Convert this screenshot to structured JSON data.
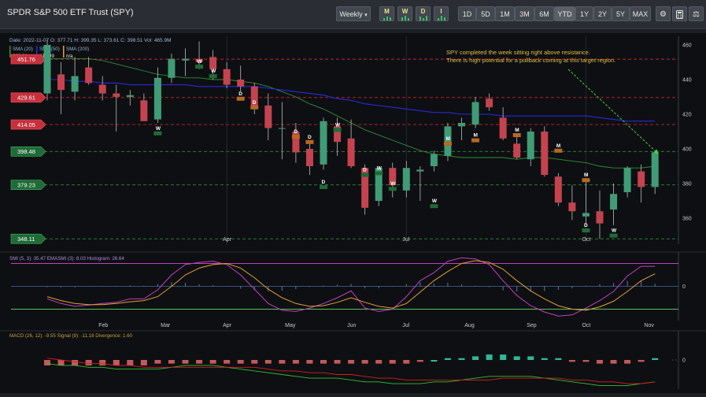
{
  "app": {
    "title": "SPDR S&P 500 ETF Trust (SPY)"
  },
  "toolbar": {
    "interval": "Weekly",
    "indicator_buttons": [
      "M",
      "W",
      "D",
      "I"
    ],
    "ranges": [
      "1D",
      "5D",
      "1M",
      "3M",
      "6M",
      "YTD",
      "1Y",
      "2Y",
      "5Y",
      "MAX"
    ],
    "active_range": "YTD",
    "tool_icons": [
      "settings-gears-icon",
      "calculator-icon",
      "scale-icon"
    ]
  },
  "colors": {
    "background": "#0e0f12",
    "up": "#3f9c76",
    "down": "#c4434f",
    "sma20": "#2f8f3c",
    "sma50": "#2a2ad8",
    "sma200": "#e0a030",
    "smi": "#c040c0",
    "emasmi": "#e0a030",
    "macd": "#30c030",
    "signal": "#d02020",
    "resistance": "#c02a2a",
    "support": "#2f8a3c",
    "annotation": "#e0c040",
    "arrow": "#44d444"
  },
  "chart_data": [
    {
      "type": "candlestick",
      "title": "",
      "ylim": [
        345,
        465
      ],
      "yticks": [
        360,
        380,
        400,
        420,
        440,
        460
      ],
      "month_labels": [
        {
          "label": "Apr",
          "index": 13
        },
        {
          "label": "Jul",
          "index": 26
        },
        {
          "label": "Oct",
          "index": 39
        }
      ],
      "ohlc_legend": {
        "date": "2022-11-07",
        "open": "377.71",
        "high": "399.35",
        "low": "373.61",
        "close": "398.51",
        "vol": "465.9M"
      },
      "ohlc_legend_text": "Date: 2022-11-07 O: 377.71 H: 399.35 L: 373.61 C: 398.51 Vol: 465.9M",
      "sma_legend": [
        {
          "name": "SMA (20)",
          "value": "389.91"
        },
        {
          "name": "SMA (50)",
          "value": "415.99"
        },
        {
          "name": "SMA (200)",
          "value": "n/a"
        }
      ],
      "candles": [
        {
          "o": 432,
          "h": 463,
          "l": 428,
          "c": 460
        },
        {
          "o": 443,
          "h": 450,
          "l": 420,
          "c": 434
        },
        {
          "o": 433,
          "h": 453,
          "l": 428,
          "c": 442
        },
        {
          "o": 447,
          "h": 453,
          "l": 437,
          "c": 438
        },
        {
          "o": 437,
          "h": 442,
          "l": 428,
          "c": 432
        },
        {
          "o": 432,
          "h": 437,
          "l": 410,
          "c": 430
        },
        {
          "o": 430,
          "h": 434,
          "l": 425,
          "c": 431
        },
        {
          "o": 428,
          "h": 432,
          "l": 416,
          "c": 416
        },
        {
          "o": 417,
          "h": 447,
          "l": 415,
          "c": 441
        },
        {
          "o": 441,
          "h": 455,
          "l": 438,
          "c": 452
        },
        {
          "o": 451,
          "h": 458,
          "l": 442,
          "c": 452
        },
        {
          "o": 452,
          "h": 462,
          "l": 446,
          "c": 450
        },
        {
          "o": 453,
          "h": 457,
          "l": 440,
          "c": 446
        },
        {
          "o": 446,
          "h": 450,
          "l": 435,
          "c": 437
        },
        {
          "o": 440,
          "h": 448,
          "l": 433,
          "c": 436
        },
        {
          "o": 436,
          "h": 438,
          "l": 420,
          "c": 425
        },
        {
          "o": 425,
          "h": 432,
          "l": 405,
          "c": 412
        },
        {
          "o": 412,
          "h": 427,
          "l": 394,
          "c": 412
        },
        {
          "o": 410,
          "h": 415,
          "l": 392,
          "c": 398
        },
        {
          "o": 400,
          "h": 404,
          "l": 385,
          "c": 390
        },
        {
          "o": 391,
          "h": 418,
          "l": 388,
          "c": 416
        },
        {
          "o": 413,
          "h": 418,
          "l": 396,
          "c": 404
        },
        {
          "o": 406,
          "h": 417,
          "l": 389,
          "c": 390
        },
        {
          "o": 389,
          "h": 391,
          "l": 362,
          "c": 366
        },
        {
          "o": 370,
          "h": 390,
          "l": 367,
          "c": 389
        },
        {
          "o": 389,
          "h": 392,
          "l": 372,
          "c": 379
        },
        {
          "o": 376,
          "h": 393,
          "l": 372,
          "c": 389
        },
        {
          "o": 387,
          "h": 390,
          "l": 370,
          "c": 388
        },
        {
          "o": 390,
          "h": 399,
          "l": 387,
          "c": 397
        },
        {
          "o": 396,
          "h": 415,
          "l": 393,
          "c": 413
        },
        {
          "o": 413,
          "h": 418,
          "l": 405,
          "c": 415
        },
        {
          "o": 414,
          "h": 430,
          "l": 412,
          "c": 427
        },
        {
          "o": 429,
          "h": 432,
          "l": 422,
          "c": 424
        },
        {
          "o": 418,
          "h": 424,
          "l": 405,
          "c": 406
        },
        {
          "o": 403,
          "h": 407,
          "l": 394,
          "c": 395
        },
        {
          "o": 394,
          "h": 412,
          "l": 390,
          "c": 410
        },
        {
          "o": 410,
          "h": 413,
          "l": 384,
          "c": 385
        },
        {
          "o": 384,
          "h": 386,
          "l": 367,
          "c": 369
        },
        {
          "o": 369,
          "h": 379,
          "l": 359,
          "c": 364
        },
        {
          "o": 361,
          "h": 383,
          "l": 357,
          "c": 363
        },
        {
          "o": 364,
          "h": 376,
          "l": 348,
          "c": 357
        },
        {
          "o": 365,
          "h": 380,
          "l": 356,
          "c": 374
        },
        {
          "o": 375,
          "h": 390,
          "l": 372,
          "c": 389
        },
        {
          "o": 387,
          "h": 391,
          "l": 369,
          "c": 378
        },
        {
          "o": 378,
          "h": 399,
          "l": 374,
          "c": 398
        }
      ],
      "sma20": [
        452,
        452,
        452,
        452,
        451,
        449,
        447,
        445,
        443,
        442,
        441,
        441,
        440,
        440,
        439,
        438,
        436,
        433,
        430,
        426,
        423,
        419,
        415,
        411,
        408,
        405,
        402,
        399,
        397,
        396,
        395,
        395,
        395,
        395,
        394,
        395,
        395,
        394,
        393,
        392,
        390,
        389,
        389,
        389,
        390
      ],
      "sma50": [
        440,
        440,
        439,
        439,
        438,
        438,
        437,
        437,
        437,
        437,
        437,
        436,
        436,
        436,
        436,
        436,
        435,
        434,
        433,
        432,
        431,
        429,
        428,
        426,
        425,
        424,
        423,
        422,
        421,
        421,
        420,
        420,
        420,
        419,
        419,
        419,
        419,
        419,
        419,
        419,
        418,
        417,
        416,
        416,
        416
      ],
      "levels": [
        {
          "label": "451.76",
          "value": 451.76,
          "kind": "resistance"
        },
        {
          "label": "429.61",
          "value": 429.61,
          "kind": "resistance"
        },
        {
          "label": "414.05",
          "value": 414.05,
          "kind": "resistance"
        },
        {
          "label": "398.48",
          "value": 398.48,
          "kind": "support"
        },
        {
          "label": "379.23",
          "value": 379.23,
          "kind": "support"
        },
        {
          "label": "348.11",
          "value": 348.11,
          "kind": "support"
        }
      ],
      "signals": [
        {
          "i": 11,
          "t": "W",
          "value": 449.5
        },
        {
          "i": 12,
          "t": "W",
          "value": 444
        },
        {
          "i": 14,
          "t": "D",
          "value": 431
        },
        {
          "i": 15,
          "t": "D",
          "value": 426
        },
        {
          "i": 18,
          "t": "D",
          "value": 409
        },
        {
          "i": 19,
          "t": "D",
          "value": 406
        },
        {
          "i": 21,
          "t": "W",
          "value": 413
        },
        {
          "i": 8,
          "t": "W",
          "value": 411
        },
        {
          "i": 20,
          "t": "D",
          "value": 380
        },
        {
          "i": 23,
          "t": "D",
          "value": 387
        },
        {
          "i": 24,
          "t": "W",
          "value": 388
        },
        {
          "i": 25,
          "t": "W",
          "value": 379
        },
        {
          "i": 28,
          "t": "W",
          "value": 369
        },
        {
          "i": 29,
          "t": "M",
          "value": 405
        },
        {
          "i": 31,
          "t": "M",
          "value": 407
        },
        {
          "i": 34,
          "t": "M",
          "value": 410
        },
        {
          "i": 37,
          "t": "M",
          "value": 401
        },
        {
          "i": 39,
          "t": "M",
          "value": 384
        },
        {
          "i": 39,
          "t": "D",
          "value": 355
        },
        {
          "i": 41,
          "t": "W",
          "value": 352
        }
      ],
      "annotation": "SPY completed the week sitting right above resistance.\nThere is high potential for a pullback coming at this target region."
    },
    {
      "type": "line",
      "ylim": [
        -60,
        60
      ],
      "yticks": [
        0
      ],
      "legend_text": "SMI (5, 3): 35.47 EMASMI (3): 8.03 Histogram: 26.64",
      "levels": [
        {
          "value": 40,
          "kind": "resistance"
        },
        {
          "value": -40,
          "kind": "support"
        }
      ],
      "series": [
        {
          "values": [
            -22,
            -30,
            -35,
            -33,
            -30,
            -28,
            -22,
            -22,
            -6,
            20,
            38,
            42,
            44,
            38,
            20,
            -5,
            -30,
            -42,
            -44,
            -38,
            -30,
            -20,
            -8,
            -38,
            -44,
            -40,
            -18,
            10,
            24,
            44,
            50,
            48,
            38,
            10,
            -16,
            -34,
            -45,
            -52,
            -50,
            -38,
            -25,
            -9,
            18,
            35,
            35
          ],
          "kind": "smi"
        },
        {
          "values": [
            -18,
            -25,
            -30,
            -32,
            -32,
            -30,
            -27,
            -25,
            -18,
            0,
            20,
            32,
            38,
            40,
            32,
            15,
            -5,
            -20,
            -30,
            -35,
            -34,
            -28,
            -20,
            -28,
            -35,
            -38,
            -30,
            -10,
            10,
            26,
            40,
            45,
            42,
            30,
            10,
            -8,
            -22,
            -34,
            -40,
            -42,
            -36,
            -26,
            -9,
            10,
            22
          ],
          "kind": "emasmi"
        }
      ],
      "histogram": [
        -4,
        -5,
        -5,
        -1,
        2,
        2,
        5,
        3,
        12,
        20,
        18,
        10,
        6,
        -2,
        -12,
        -20,
        -25,
        -22,
        -14,
        -3,
        4,
        8,
        12,
        -10,
        -9,
        -2,
        12,
        20,
        14,
        18,
        10,
        3,
        -4,
        -20,
        -26,
        -26,
        -23,
        -18,
        -10,
        4,
        11,
        17,
        27,
        25,
        13
      ]
    },
    {
      "type": "bar",
      "ylim": [
        -16,
        16
      ],
      "yticks": [
        0
      ],
      "legend_text": "MACD (26, 12): -9.55 Signal (9): -11.18 Divergence: 1.60",
      "series": [
        {
          "values": [
            -2,
            -3,
            -3,
            -4,
            -4,
            -5,
            -5,
            -5,
            -5,
            -4,
            -3,
            -3,
            -3,
            -4,
            -5,
            -6,
            -7,
            -8,
            -9,
            -10,
            -10,
            -10,
            -11,
            -12,
            -12,
            -13,
            -13,
            -13,
            -12,
            -12,
            -11,
            -10,
            -9,
            -9,
            -9,
            -9,
            -10,
            -11,
            -12,
            -13,
            -14,
            -14,
            -14,
            -13,
            -12
          ],
          "kind": "macd"
        },
        {
          "values": [
            1,
            0,
            -1,
            -2,
            -2,
            -3,
            -3,
            -4,
            -4,
            -4,
            -4,
            -4,
            -4,
            -4,
            -4,
            -4,
            -5,
            -6,
            -6,
            -7,
            -7,
            -8,
            -8,
            -9,
            -10,
            -10,
            -11,
            -11,
            -11,
            -11,
            -11,
            -11,
            -11,
            -10,
            -10,
            -10,
            -10,
            -10,
            -11,
            -11,
            -12,
            -12,
            -13,
            -13,
            -12
          ],
          "kind": "signal"
        }
      ],
      "histogram": [
        -3,
        -3,
        -3,
        -3,
        -3,
        -3,
        -3,
        -3,
        -2,
        -2,
        -2,
        -2,
        -2,
        -2,
        -2,
        -2,
        -2,
        -2,
        -2,
        -2,
        -2,
        -2,
        -2,
        -2,
        -2,
        -2,
        -2,
        -1,
        0,
        1,
        1,
        2,
        3,
        3,
        2,
        2,
        1,
        1,
        -1,
        -1,
        -2,
        -2,
        -2,
        -1,
        1
      ]
    }
  ],
  "x_axis_months": [
    {
      "label": "Feb",
      "index": 4
    },
    {
      "label": "Mar",
      "index": 8.5
    },
    {
      "label": "Apr",
      "index": 13
    },
    {
      "label": "May",
      "index": 17.5
    },
    {
      "label": "Jun",
      "index": 22
    },
    {
      "label": "Jul",
      "index": 26
    },
    {
      "label": "Aug",
      "index": 30.5
    },
    {
      "label": "Sep",
      "index": 35
    },
    {
      "label": "Oct",
      "index": 39
    },
    {
      "label": "Nov",
      "index": 43.5
    }
  ]
}
